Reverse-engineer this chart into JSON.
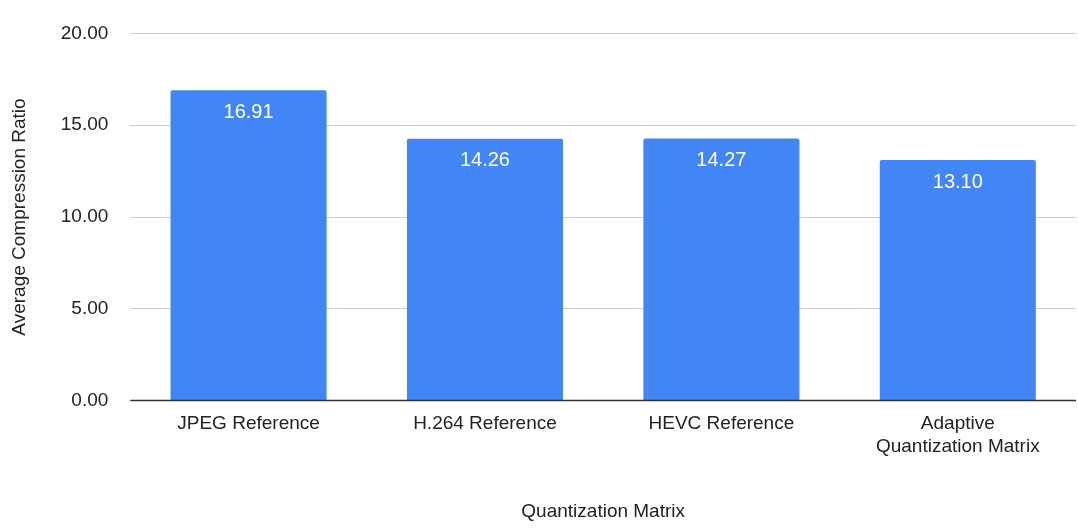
{
  "chart_data": {
    "type": "bar",
    "xlabel": "Quantization Matrix",
    "ylabel": "Average Compression Ratio",
    "categories": [
      "JPEG Reference",
      "H.264 Reference",
      "HEVC Reference",
      "Adaptive Quantization Matrix"
    ],
    "values": [
      16.91,
      14.26,
      14.27,
      13.1
    ],
    "value_labels": [
      "16.91",
      "14.26",
      "14.27",
      "13.10"
    ],
    "color": "#4285f4",
    "ylim": [
      0,
      20
    ],
    "yticks": [
      {
        "value": 0,
        "label": "0.00"
      },
      {
        "value": 5,
        "label": "5.00"
      },
      {
        "value": 10,
        "label": "10.00"
      },
      {
        "value": 15,
        "label": "15.00"
      },
      {
        "value": 20,
        "label": "20.00"
      }
    ],
    "grid": "y",
    "legend": false
  }
}
